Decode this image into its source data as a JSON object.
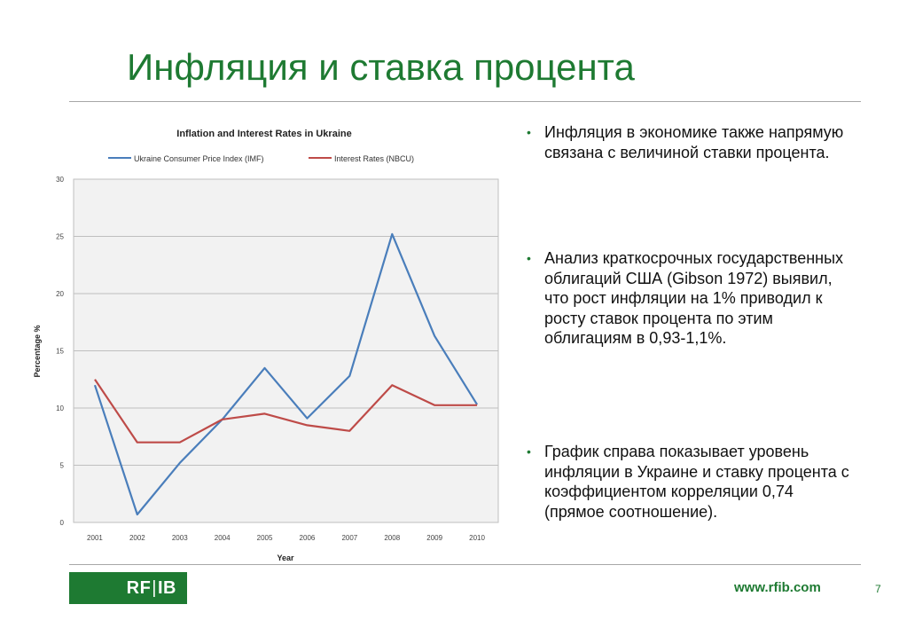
{
  "slide": {
    "title": "Инфляция и ставка процента",
    "bullets": [
      "Инфляция в экономике также напрямую связана с величиной ставки процента.",
      "Анализ краткосрочных государственных облигаций США (Gibson 1972) выявил, что рост инфляции на 1% приводил к росту ставок процента по этим облигациям в 0,93-1,1%.",
      "График справа показывает уровень инфляции в Украине и ставку процента с коэффициентом корреляции 0,74 (прямое соотношение)."
    ],
    "bullet_icon": "bullet-dot-icon",
    "colors": {
      "accent": "#1e7a32",
      "series_cpi": "#4a7ebb",
      "series_rate": "#be4b48"
    }
  },
  "footer": {
    "logo_left": "RF",
    "logo_right": "IB",
    "website": "www.rfib.com",
    "page_number": "7"
  },
  "chart_data": {
    "type": "line",
    "title": "Inflation and Interest Rates in Ukraine",
    "xlabel": "Year",
    "ylabel": "Percentage %",
    "x": [
      "2001",
      "2002",
      "2003",
      "2004",
      "2005",
      "2006",
      "2007",
      "2008",
      "2009",
      "2010"
    ],
    "ylim": [
      0,
      30
    ],
    "yticks": [
      0,
      5,
      10,
      15,
      20,
      25,
      30
    ],
    "grid": true,
    "legend": "top",
    "series": [
      {
        "name": "Ukraine Consumer Price Index (IMF)",
        "color": "#4a7ebb",
        "values": [
          12.0,
          0.7,
          5.2,
          9.0,
          13.5,
          9.1,
          12.8,
          25.2,
          16.3,
          10.3
        ]
      },
      {
        "name": "Interest Rates (NBCU)",
        "color": "#be4b48",
        "values": [
          12.5,
          7.0,
          7.0,
          9.0,
          9.5,
          8.5,
          8.0,
          12.0,
          10.25,
          10.25
        ]
      }
    ]
  }
}
